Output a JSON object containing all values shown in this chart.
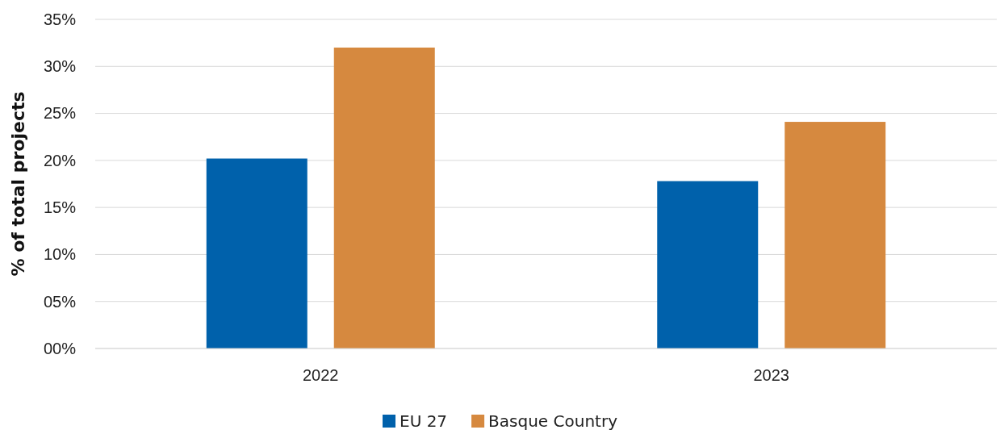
{
  "chart_data": {
    "type": "bar",
    "ylabel": "% of total projects",
    "categories": [
      "2022",
      "2023"
    ],
    "series": [
      {
        "name": "EU 27",
        "color": "#0061ab",
        "values": [
          20.2,
          17.8
        ]
      },
      {
        "name": "Basque Country",
        "color": "#d6893f",
        "values": [
          32.0,
          24.1
        ]
      }
    ],
    "ylim": [
      0,
      35
    ],
    "yticks": [
      {
        "value": 0,
        "label": "00%"
      },
      {
        "value": 5,
        "label": "05%"
      },
      {
        "value": 10,
        "label": "10%"
      },
      {
        "value": 15,
        "label": "15%"
      },
      {
        "value": 20,
        "label": "20%"
      },
      {
        "value": 25,
        "label": "25%"
      },
      {
        "value": 30,
        "label": "30%"
      },
      {
        "value": 35,
        "label": "35%"
      }
    ],
    "grid": "y",
    "legend": "bottom"
  }
}
